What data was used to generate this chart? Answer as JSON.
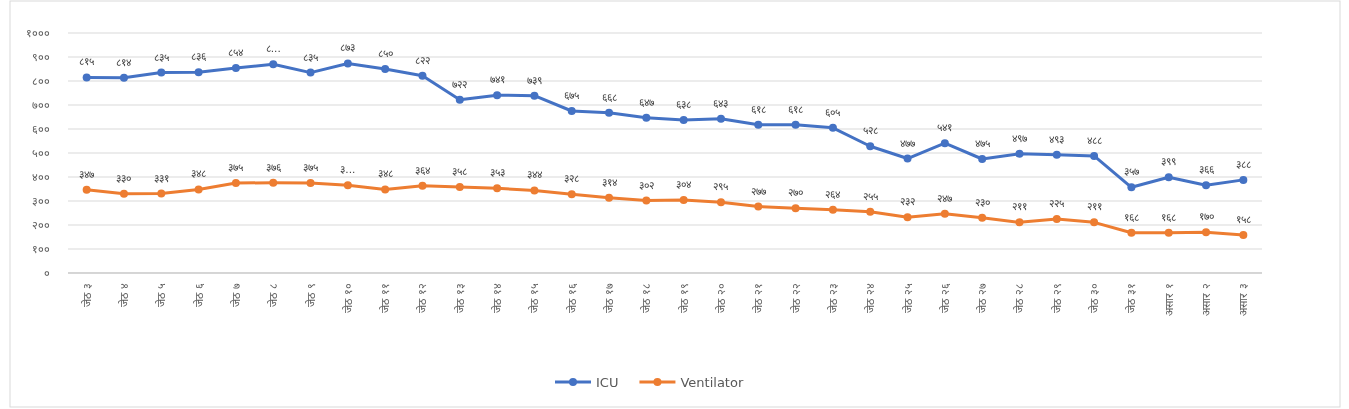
{
  "chart_data": {
    "type": "line",
    "categories": [
      "जेठ ३",
      "जेठ ४",
      "जेठ ५",
      "जेठ ६",
      "जेठ ७",
      "जेठ ८",
      "जेठ ९",
      "जेठ १०",
      "जेठ ११",
      "जेठ १२",
      "जेठ १३",
      "जेठ १४",
      "जेठ १५",
      "जेठ १६",
      "जेठ १७",
      "जेठ १८",
      "जेठ १९",
      "जेठ २०",
      "जेठ २१",
      "जेठ २२",
      "जेठ २३",
      "जेठ २४",
      "जेठ २५",
      "जेठ २६",
      "जेठ २७",
      "जेठ २८",
      "जेठ २९",
      "जेठ ३०",
      "जेठ ३१",
      "असार १",
      "असार २",
      "असार ३"
    ],
    "series": [
      {
        "name": "ICU",
        "color": "#4472c4",
        "values": [
          815,
          814,
          835,
          836,
          854,
          870,
          835,
          873,
          850,
          822,
          722,
          741,
          739,
          675,
          668,
          647,
          638,
          643,
          618,
          618,
          605,
          528,
          477,
          541,
          475,
          497,
          493,
          488,
          357,
          399,
          366,
          388
        ],
        "value_labels": [
          "८१५",
          "८१४",
          "८३५",
          "८३६",
          "८५४",
          "८...",
          "८३५",
          "८७३",
          "८५०",
          "८२२",
          "७२२",
          "७४१",
          "७३९",
          "६७५",
          "६६८",
          "६४७",
          "६३८",
          "६४३",
          "६१८",
          "६१८",
          "६०५",
          "५२८",
          "४७७",
          "५४१",
          "४७५",
          "४९७",
          "४९३",
          "४८८",
          "३५७",
          "३९९",
          "३६६",
          "३८८"
        ]
      },
      {
        "name": "Ventilator",
        "color": "#ed7d31",
        "values": [
          347,
          330,
          331,
          348,
          375,
          376,
          375,
          366,
          348,
          364,
          358,
          353,
          344,
          328,
          314,
          302,
          304,
          295,
          277,
          270,
          264,
          255,
          232,
          247,
          230,
          211,
          225,
          211,
          168,
          168,
          170,
          158
        ],
        "value_labels": [
          "३४७",
          "३३०",
          "३३१",
          "३४८",
          "३७५",
          "३७६",
          "३७५",
          "३...",
          "३४८",
          "३६४",
          "३५८",
          "३५३",
          "३४४",
          "३२८",
          "३१४",
          "३०२",
          "३०४",
          "२९५",
          "२७७",
          "२७०",
          "२६४",
          "२५५",
          "२३२",
          "२४७",
          "२३०",
          "२११",
          "२२५",
          "२११",
          "१६८",
          "१६८",
          "१७०",
          "१५८"
        ]
      }
    ],
    "ylim": [
      0,
      1000
    ],
    "yticks": [
      {
        "value": 0,
        "label": "०"
      },
      {
        "value": 100,
        "label": "१००"
      },
      {
        "value": 200,
        "label": "२००"
      },
      {
        "value": 300,
        "label": "३००"
      },
      {
        "value": 400,
        "label": "४००"
      },
      {
        "value": 500,
        "label": "५००"
      },
      {
        "value": 600,
        "label": "६००"
      },
      {
        "value": 700,
        "label": "७००"
      },
      {
        "value": 800,
        "label": "८००"
      },
      {
        "value": 900,
        "label": "९००"
      },
      {
        "value": 1000,
        "label": "१०००"
      }
    ],
    "grid": "y",
    "legend": "bottom",
    "marker": "circle",
    "line_style": "solid"
  }
}
